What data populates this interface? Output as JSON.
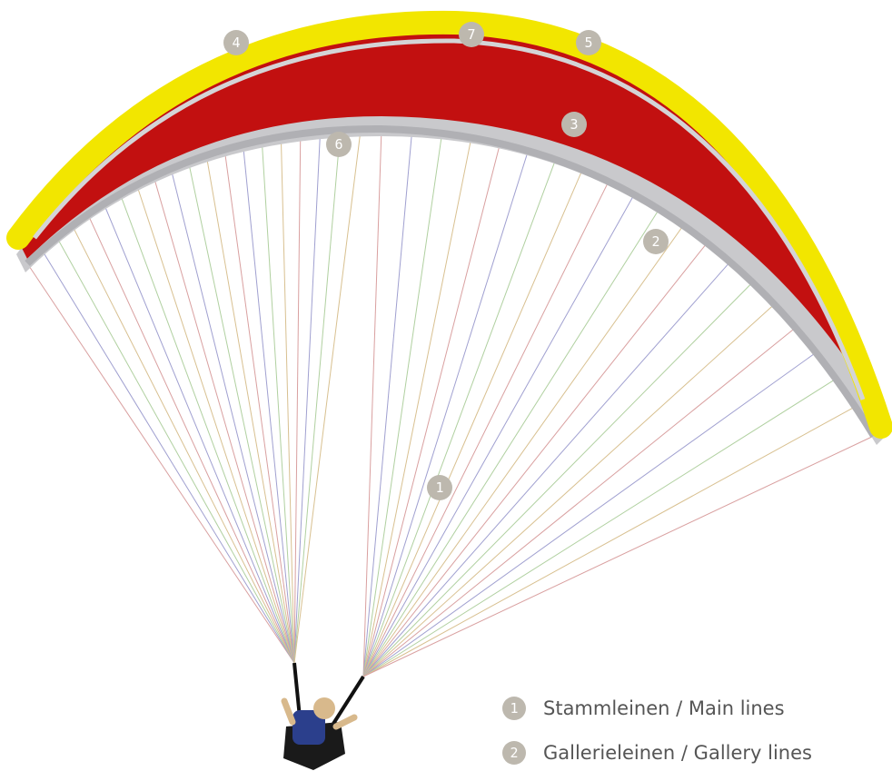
{
  "markers": [
    {
      "label": "1"
    },
    {
      "label": "2"
    },
    {
      "label": "3"
    },
    {
      "label": "4"
    },
    {
      "label": "5"
    },
    {
      "label": "6"
    },
    {
      "label": "7"
    }
  ],
  "legend": [
    {
      "number": "1",
      "text": "Stammleinen / Main lines"
    },
    {
      "number": "2",
      "text": "Gallerieleinen / Gallery lines"
    }
  ]
}
